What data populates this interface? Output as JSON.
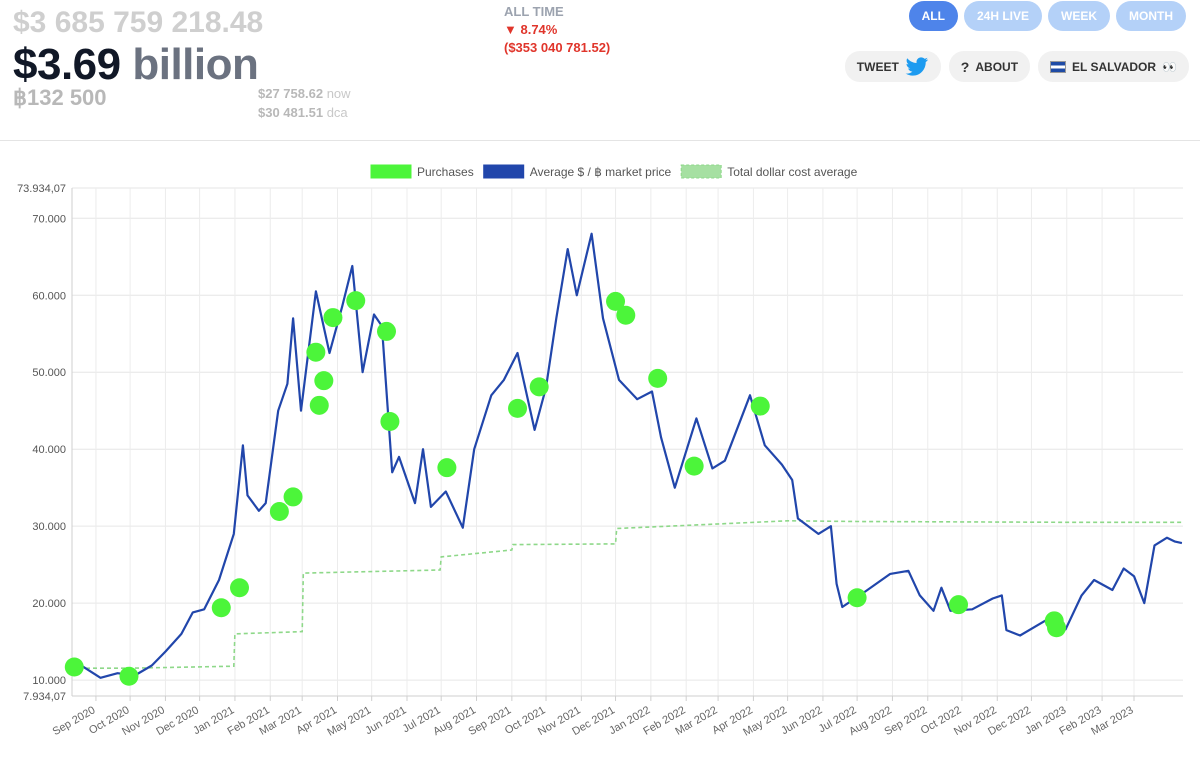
{
  "header": {
    "total_usd": "$3 685 759 218.48",
    "billion_num": "$3.69",
    "billion_unit": "billion",
    "btc_held": "฿132 500",
    "price_now": "$27 758.62",
    "price_now_label": "now",
    "price_dca": "$30 481.51",
    "price_dca_label": "dca",
    "period_label": "ALL TIME",
    "change_pct": "▼ 8.74%",
    "change_usd": "($353 040 781.52)"
  },
  "tabs": [
    {
      "label": "ALL",
      "active": true
    },
    {
      "label": "24H LIVE",
      "active": false
    },
    {
      "label": "WEEK",
      "active": false
    },
    {
      "label": "MONTH",
      "active": false
    }
  ],
  "actions": {
    "tweet": "TWEET",
    "about": "ABOUT",
    "el_salvador": "EL SALVADOR",
    "el_salvador_emoji": "👀"
  },
  "colors": {
    "purchases": "#4cf53a",
    "market": "#2146ab",
    "dca": "#8ed889",
    "accent": "#4e84ea",
    "negative": "#e0352b"
  },
  "chart_data": {
    "type": "line",
    "legend": [
      "Purchases",
      "Average $ / ฿ market price",
      "Total dollar cost average"
    ],
    "legend_position": "top",
    "grid": true,
    "ylim": [
      7934.07,
      73934.07
    ],
    "y_ticks": [
      10000,
      20000,
      30000,
      40000,
      50000,
      60000,
      70000
    ],
    "y_tick_labels": [
      "10.000",
      "20.000",
      "30.000",
      "40.000",
      "50.000",
      "60.000",
      "70.000"
    ],
    "y_min_label": "7.934,07",
    "y_max_label": "73.934,07",
    "x_range": [
      "2020-08-11",
      "2023-04-13"
    ],
    "x_ticks": [
      "2020-09-01",
      "2020-10-01",
      "2020-11-01",
      "2020-12-01",
      "2021-01-01",
      "2021-02-01",
      "2021-03-01",
      "2021-04-01",
      "2021-05-01",
      "2021-06-01",
      "2021-07-01",
      "2021-08-01",
      "2021-09-01",
      "2021-10-01",
      "2021-11-01",
      "2021-12-01",
      "2022-01-01",
      "2022-02-01",
      "2022-03-01",
      "2022-04-01",
      "2022-05-01",
      "2022-06-01",
      "2022-07-01",
      "2022-08-01",
      "2022-09-01",
      "2022-10-01",
      "2022-11-01",
      "2022-12-01",
      "2023-01-01",
      "2023-02-01",
      "2023-03-01"
    ],
    "x_tick_labels": [
      "Sep 2020",
      "Oct 2020",
      "Nov 2020",
      "Dec 2020",
      "Jan 2021",
      "Feb 2021",
      "Mar 2021",
      "Apr 2021",
      "May 2021",
      "Jun 2021",
      "Jul 2021",
      "Aug 2021",
      "Sep 2021",
      "Oct 2021",
      "Nov 2021",
      "Dec 2021",
      "Jan 2022",
      "Feb 2022",
      "Mar 2022",
      "Apr 2022",
      "May 2022",
      "Jun 2022",
      "Jul 2022",
      "Aug 2022",
      "Sep 2022",
      "Oct 2022",
      "Nov 2022",
      "Dec 2022",
      "Jan 2023",
      "Feb 2023",
      "Mar 2023"
    ],
    "market_price": [
      [
        "2020-08-11",
        11500
      ],
      [
        "2020-08-20",
        11800
      ],
      [
        "2020-09-05",
        10300
      ],
      [
        "2020-09-20",
        10900
      ],
      [
        "2020-10-05",
        10600
      ],
      [
        "2020-10-20",
        11900
      ],
      [
        "2020-11-01",
        13700
      ],
      [
        "2020-11-15",
        16000
      ],
      [
        "2020-11-25",
        18800
      ],
      [
        "2020-12-05",
        19200
      ],
      [
        "2020-12-18",
        23000
      ],
      [
        "2020-12-31",
        29000
      ],
      [
        "2021-01-08",
        40500
      ],
      [
        "2021-01-12",
        34000
      ],
      [
        "2021-01-22",
        32000
      ],
      [
        "2021-01-28",
        33000
      ],
      [
        "2021-02-08",
        45000
      ],
      [
        "2021-02-16",
        48500
      ],
      [
        "2021-02-21",
        57000
      ],
      [
        "2021-02-28",
        45000
      ],
      [
        "2021-03-13",
        60500
      ],
      [
        "2021-03-25",
        52500
      ],
      [
        "2021-04-05",
        58500
      ],
      [
        "2021-04-14",
        63800
      ],
      [
        "2021-04-23",
        50000
      ],
      [
        "2021-05-03",
        57500
      ],
      [
        "2021-05-10",
        56000
      ],
      [
        "2021-05-19",
        37000
      ],
      [
        "2021-05-25",
        39000
      ],
      [
        "2021-06-08",
        33000
      ],
      [
        "2021-06-15",
        40000
      ],
      [
        "2021-06-22",
        32500
      ],
      [
        "2021-07-05",
        34500
      ],
      [
        "2021-07-20",
        29800
      ],
      [
        "2021-07-30",
        40000
      ],
      [
        "2021-08-14",
        47000
      ],
      [
        "2021-08-25",
        49000
      ],
      [
        "2021-09-06",
        52500
      ],
      [
        "2021-09-21",
        42500
      ],
      [
        "2021-10-01",
        48000
      ],
      [
        "2021-10-10",
        57000
      ],
      [
        "2021-10-20",
        66000
      ],
      [
        "2021-10-28",
        60000
      ],
      [
        "2021-11-10",
        68000
      ],
      [
        "2021-11-20",
        57000
      ],
      [
        "2021-12-04",
        49000
      ],
      [
        "2021-12-20",
        46500
      ],
      [
        "2022-01-02",
        47500
      ],
      [
        "2022-01-10",
        41500
      ],
      [
        "2022-01-22",
        35000
      ],
      [
        "2022-02-10",
        44000
      ],
      [
        "2022-02-24",
        37500
      ],
      [
        "2022-03-07",
        38500
      ],
      [
        "2022-03-29",
        47000
      ],
      [
        "2022-04-11",
        40500
      ],
      [
        "2022-04-26",
        38000
      ],
      [
        "2022-05-05",
        36000
      ],
      [
        "2022-05-10",
        31000
      ],
      [
        "2022-05-28",
        29000
      ],
      [
        "2022-06-08",
        30000
      ],
      [
        "2022-06-13",
        22500
      ],
      [
        "2022-06-18",
        19500
      ],
      [
        "2022-06-28",
        20500
      ],
      [
        "2022-07-08",
        21500
      ],
      [
        "2022-07-30",
        23800
      ],
      [
        "2022-08-15",
        24200
      ],
      [
        "2022-08-25",
        21000
      ],
      [
        "2022-09-06",
        19000
      ],
      [
        "2022-09-13",
        22000
      ],
      [
        "2022-09-21",
        19000
      ],
      [
        "2022-10-10",
        19200
      ],
      [
        "2022-10-28",
        20600
      ],
      [
        "2022-11-05",
        21000
      ],
      [
        "2022-11-09",
        16500
      ],
      [
        "2022-11-21",
        15800
      ],
      [
        "2022-12-14",
        17800
      ],
      [
        "2022-12-31",
        16600
      ],
      [
        "2023-01-14",
        21000
      ],
      [
        "2023-01-25",
        23000
      ],
      [
        "2023-02-10",
        21700
      ],
      [
        "2023-02-20",
        24500
      ],
      [
        "2023-03-01",
        23500
      ],
      [
        "2023-03-10",
        20000
      ],
      [
        "2023-03-19",
        27500
      ],
      [
        "2023-03-30",
        28500
      ],
      [
        "2023-04-06",
        28000
      ],
      [
        "2023-04-12",
        27800
      ]
    ],
    "dollar_cost_average": [
      [
        "2020-08-11",
        11550
      ],
      [
        "2020-10-01",
        11550
      ],
      [
        "2020-12-31",
        11800
      ],
      [
        "2021-01-01",
        16000
      ],
      [
        "2021-03-01",
        16300
      ],
      [
        "2021-03-02",
        23900
      ],
      [
        "2021-06-30",
        24300
      ],
      [
        "2021-07-01",
        26000
      ],
      [
        "2021-09-01",
        26900
      ],
      [
        "2021-09-02",
        27600
      ],
      [
        "2021-12-01",
        27700
      ],
      [
        "2021-12-02",
        29700
      ],
      [
        "2022-02-01",
        30100
      ],
      [
        "2022-05-01",
        30700
      ],
      [
        "2022-07-01",
        30600
      ],
      [
        "2023-01-01",
        30500
      ],
      [
        "2023-04-12",
        30500
      ]
    ],
    "purchases": [
      [
        "2020-08-13",
        11700
      ],
      [
        "2020-09-30",
        10500
      ],
      [
        "2020-12-20",
        19400
      ],
      [
        "2021-01-05",
        22000
      ],
      [
        "2021-02-09",
        31900
      ],
      [
        "2021-02-21",
        33800
      ],
      [
        "2021-03-13",
        52600
      ],
      [
        "2021-03-16",
        45700
      ],
      [
        "2021-03-20",
        48900
      ],
      [
        "2021-03-28",
        57100
      ],
      [
        "2021-04-17",
        59300
      ],
      [
        "2021-05-14",
        55300
      ],
      [
        "2021-05-17",
        43600
      ],
      [
        "2021-07-06",
        37600
      ],
      [
        "2021-09-06",
        45300
      ],
      [
        "2021-09-25",
        48100
      ],
      [
        "2021-12-01",
        59200
      ],
      [
        "2021-12-10",
        57400
      ],
      [
        "2022-01-07",
        49200
      ],
      [
        "2022-02-08",
        37800
      ],
      [
        "2022-04-07",
        45600
      ],
      [
        "2022-07-01",
        20700
      ],
      [
        "2022-09-28",
        19800
      ],
      [
        "2022-12-21",
        17700
      ],
      [
        "2022-12-23",
        16800
      ]
    ]
  }
}
